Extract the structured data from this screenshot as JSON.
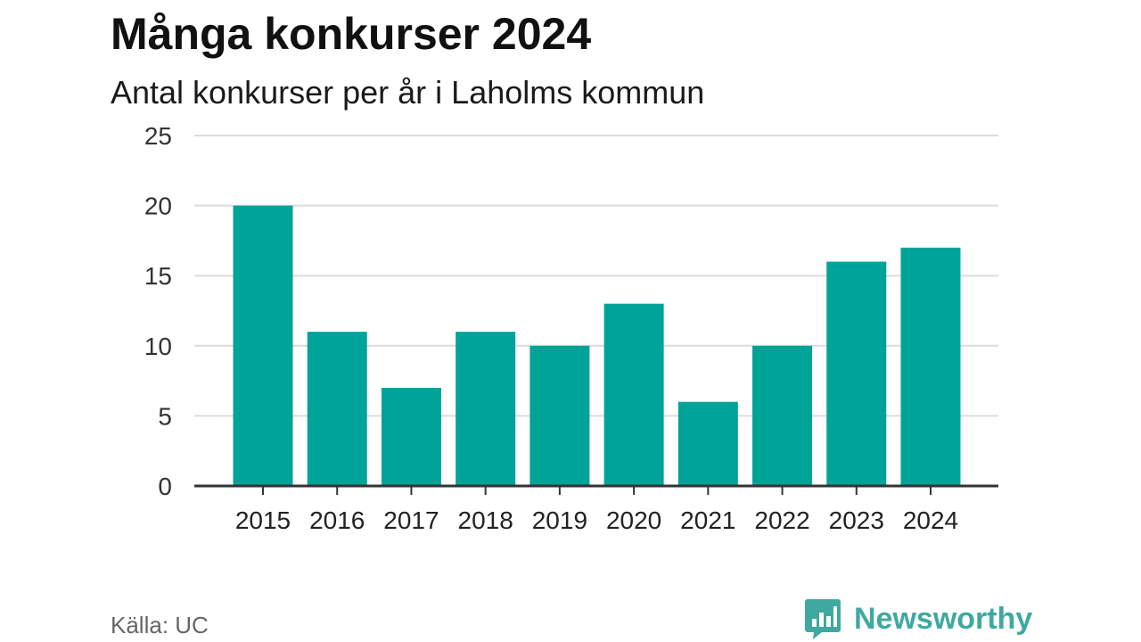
{
  "title": "Många konkurser 2024",
  "subtitle": "Antal konkurser per år i Laholms kommun",
  "source": "Källa: UC",
  "brand": {
    "name": "Newsworthy",
    "icon": "newsworthy-logo-icon",
    "color": "#3fa9a0"
  },
  "colors": {
    "bar": "#00a398",
    "grid": "#dcdcdc",
    "axis": "#333333"
  },
  "chart_data": {
    "type": "bar",
    "categories": [
      "2015",
      "2016",
      "2017",
      "2018",
      "2019",
      "2020",
      "2021",
      "2022",
      "2023",
      "2024"
    ],
    "values": [
      20,
      11,
      7,
      11,
      10,
      13,
      6,
      10,
      16,
      17
    ],
    "ylim": [
      0,
      25
    ],
    "yticks": [
      0,
      5,
      10,
      15,
      20,
      25
    ],
    "grid": true,
    "legend": false
  }
}
